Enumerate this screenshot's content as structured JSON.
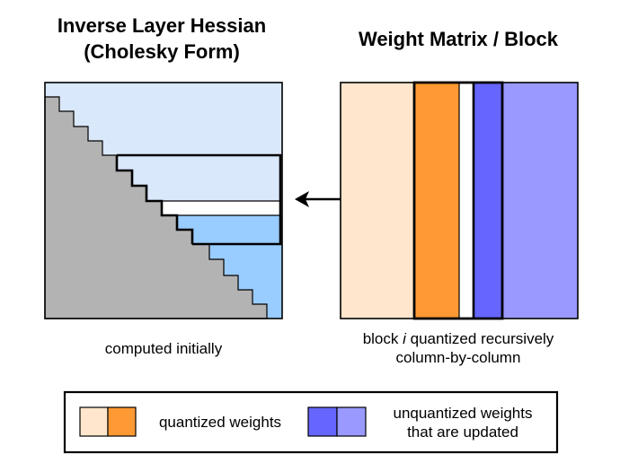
{
  "left_panel": {
    "title_line1": "Inverse Layer Hessian",
    "title_line2": "(Cholesky Form)",
    "caption": "computed initially"
  },
  "right_panel": {
    "title": "Weight Matrix / Block",
    "caption_line1_prefix": "block ",
    "caption_line1_italic": "i",
    "caption_line1_suffix": " quantized recursively",
    "caption_line2": "column-by-column"
  },
  "legend": {
    "quantized_label": "quantized weights",
    "unquantized_line1": "unquantized weights",
    "unquantized_line2": "that are updated"
  },
  "colors": {
    "light_blue": "#dae8fc",
    "mid_blue": "#99ccff",
    "gray": "#b3b3b3",
    "peach": "#ffe6cc",
    "orange": "#ff9933",
    "blue_violet": "#6666ff",
    "lavender": "#9999ff",
    "stroke": "#000000"
  },
  "icons": {
    "arrow": "double-headed-arrow-icon"
  }
}
